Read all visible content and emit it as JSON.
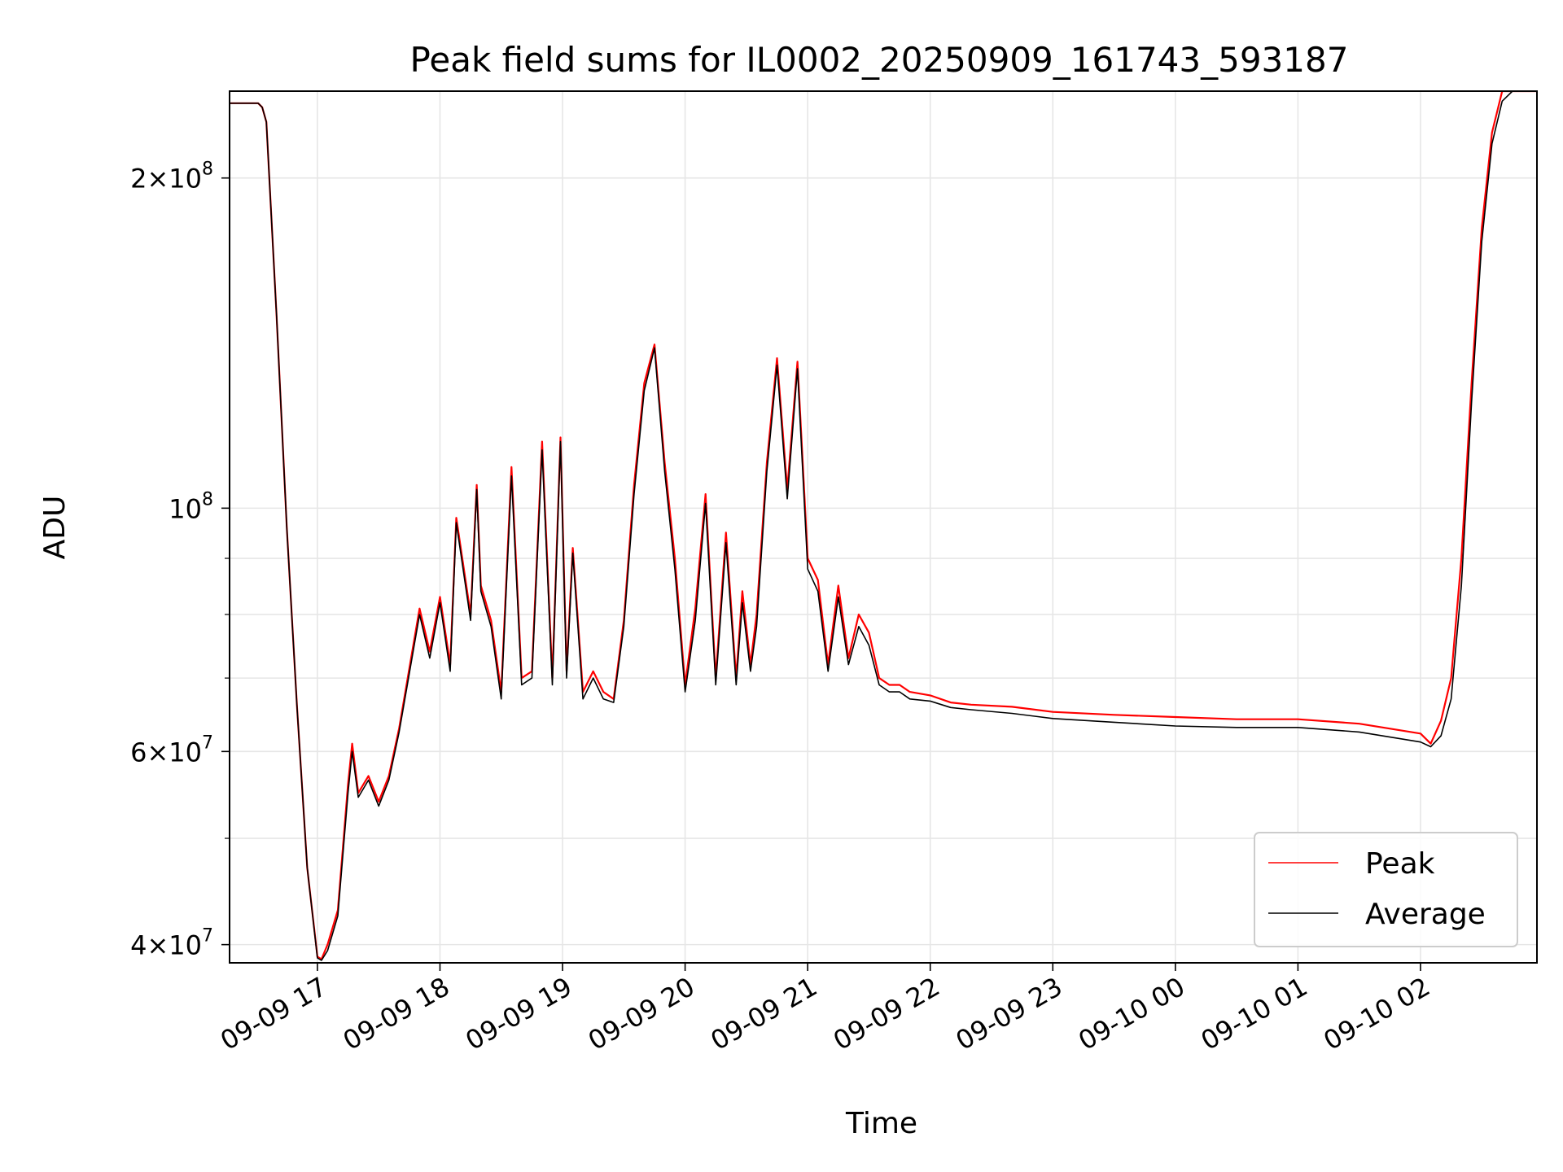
{
  "chart_data": {
    "type": "line",
    "title": "Peak field sums for IL0002_20250909_161743_593187",
    "xlabel": "Time",
    "ylabel": "ADU",
    "y_scale": "log",
    "xlim": [
      "2025-09-09 16:17",
      "2025-09-10 02:57"
    ],
    "ylim": [
      38500000,
      240000000
    ],
    "grid": true,
    "legend_position": "lower-right",
    "x_ticks": [
      {
        "value": "2025-09-09 17:00",
        "label": "09-09 17"
      },
      {
        "value": "2025-09-09 18:00",
        "label": "09-09 18"
      },
      {
        "value": "2025-09-09 19:00",
        "label": "09-09 19"
      },
      {
        "value": "2025-09-09 20:00",
        "label": "09-09 20"
      },
      {
        "value": "2025-09-09 21:00",
        "label": "09-09 21"
      },
      {
        "value": "2025-09-09 22:00",
        "label": "09-09 22"
      },
      {
        "value": "2025-09-09 23:00",
        "label": "09-09 23"
      },
      {
        "value": "2025-09-10 00:00",
        "label": "09-10 00"
      },
      {
        "value": "2025-09-10 01:00",
        "label": "09-10 01"
      },
      {
        "value": "2025-09-10 02:00",
        "label": "09-10 02"
      }
    ],
    "y_ticks": [
      {
        "value": 40000000,
        "mantissa": "4",
        "exponent": "7"
      },
      {
        "value": 60000000,
        "mantissa": "6",
        "exponent": "7"
      },
      {
        "value": 100000000,
        "mantissa": "",
        "exponent": "8"
      },
      {
        "value": 200000000,
        "mantissa": "2",
        "exponent": "8"
      }
    ],
    "y_minor_ticks": [
      50000000,
      70000000,
      80000000,
      90000000
    ],
    "series": [
      {
        "name": "Peak",
        "color": "#ff0000",
        "x": [
          "2025-09-09 16:17",
          "2025-09-09 16:31",
          "2025-09-09 16:33",
          "2025-09-09 16:35",
          "2025-09-09 16:40",
          "2025-09-09 16:45",
          "2025-09-09 16:50",
          "2025-09-09 16:55",
          "2025-09-09 17:00",
          "2025-09-09 17:02",
          "2025-09-09 17:05",
          "2025-09-09 17:10",
          "2025-09-09 17:15",
          "2025-09-09 17:17",
          "2025-09-09 17:20",
          "2025-09-09 17:25",
          "2025-09-09 17:30",
          "2025-09-09 17:35",
          "2025-09-09 17:40",
          "2025-09-09 17:50",
          "2025-09-09 17:55",
          "2025-09-09 18:00",
          "2025-09-09 18:05",
          "2025-09-09 18:08",
          "2025-09-09 18:15",
          "2025-09-09 18:18",
          "2025-09-09 18:20",
          "2025-09-09 18:25",
          "2025-09-09 18:30",
          "2025-09-09 18:35",
          "2025-09-09 18:40",
          "2025-09-09 18:45",
          "2025-09-09 18:50",
          "2025-09-09 18:55",
          "2025-09-09 18:59",
          "2025-09-09 19:02",
          "2025-09-09 19:05",
          "2025-09-09 19:10",
          "2025-09-09 19:15",
          "2025-09-09 19:20",
          "2025-09-09 19:25",
          "2025-09-09 19:30",
          "2025-09-09 19:35",
          "2025-09-09 19:40",
          "2025-09-09 19:45",
          "2025-09-09 19:50",
          "2025-09-09 19:55",
          "2025-09-09 20:00",
          "2025-09-09 20:05",
          "2025-09-09 20:10",
          "2025-09-09 20:15",
          "2025-09-09 20:20",
          "2025-09-09 20:25",
          "2025-09-09 20:28",
          "2025-09-09 20:32",
          "2025-09-09 20:35",
          "2025-09-09 20:40",
          "2025-09-09 20:45",
          "2025-09-09 20:50",
          "2025-09-09 20:55",
          "2025-09-09 21:00",
          "2025-09-09 21:05",
          "2025-09-09 21:10",
          "2025-09-09 21:15",
          "2025-09-09 21:20",
          "2025-09-09 21:25",
          "2025-09-09 21:30",
          "2025-09-09 21:35",
          "2025-09-09 21:40",
          "2025-09-09 21:45",
          "2025-09-09 21:50",
          "2025-09-09 22:00",
          "2025-09-09 22:10",
          "2025-09-09 22:20",
          "2025-09-09 22:40",
          "2025-09-09 23:00",
          "2025-09-09 23:30",
          "2025-09-10 00:00",
          "2025-09-10 00:30",
          "2025-09-10 01:00",
          "2025-09-10 01:30",
          "2025-09-10 02:00",
          "2025-09-10 02:05",
          "2025-09-10 02:10",
          "2025-09-10 02:15",
          "2025-09-10 02:20",
          "2025-09-10 02:25",
          "2025-09-10 02:30",
          "2025-09-10 02:35",
          "2025-09-10 02:40",
          "2025-09-10 02:45",
          "2025-09-10 02:50",
          "2025-09-10 02:57"
        ],
        "values": [
          234000000,
          234000000,
          232000000,
          225000000,
          150000000,
          96000000,
          66000000,
          47000000,
          39000000,
          38800000,
          40000000,
          43000000,
          56000000,
          61000000,
          55000000,
          57000000,
          54000000,
          57000000,
          63000000,
          81000000,
          74000000,
          83000000,
          72000000,
          98000000,
          80000000,
          105000000,
          85000000,
          79000000,
          68000000,
          109000000,
          70000000,
          71000000,
          115000000,
          70000000,
          116000000,
          71000000,
          92000000,
          68000000,
          71000000,
          68000000,
          67000000,
          79000000,
          105000000,
          130000000,
          141000000,
          110000000,
          90000000,
          69000000,
          81000000,
          103000000,
          70000000,
          95000000,
          70000000,
          84000000,
          72000000,
          80000000,
          110000000,
          137000000,
          104000000,
          136000000,
          90000000,
          86000000,
          72000000,
          85000000,
          73000000,
          80000000,
          77000000,
          70000000,
          69000000,
          69000000,
          68000000,
          67500000,
          66500000,
          66200000,
          65900000,
          65200000,
          64800000,
          64500000,
          64200000,
          64200000,
          63600000,
          62300000,
          61000000,
          64000000,
          70000000,
          90000000,
          130000000,
          180000000,
          220000000,
          240000000,
          240000000,
          240000000,
          240000000
        ]
      },
      {
        "name": "Average",
        "color": "#000000",
        "x": [
          "2025-09-09 16:17",
          "2025-09-09 16:31",
          "2025-09-09 16:33",
          "2025-09-09 16:35",
          "2025-09-09 16:40",
          "2025-09-09 16:45",
          "2025-09-09 16:50",
          "2025-09-09 16:55",
          "2025-09-09 17:00",
          "2025-09-09 17:02",
          "2025-09-09 17:05",
          "2025-09-09 17:10",
          "2025-09-09 17:15",
          "2025-09-09 17:17",
          "2025-09-09 17:20",
          "2025-09-09 17:25",
          "2025-09-09 17:30",
          "2025-09-09 17:35",
          "2025-09-09 17:40",
          "2025-09-09 17:50",
          "2025-09-09 17:55",
          "2025-09-09 18:00",
          "2025-09-09 18:05",
          "2025-09-09 18:08",
          "2025-09-09 18:15",
          "2025-09-09 18:18",
          "2025-09-09 18:20",
          "2025-09-09 18:25",
          "2025-09-09 18:30",
          "2025-09-09 18:35",
          "2025-09-09 18:40",
          "2025-09-09 18:45",
          "2025-09-09 18:50",
          "2025-09-09 18:55",
          "2025-09-09 18:59",
          "2025-09-09 19:02",
          "2025-09-09 19:05",
          "2025-09-09 19:10",
          "2025-09-09 19:15",
          "2025-09-09 19:20",
          "2025-09-09 19:25",
          "2025-09-09 19:30",
          "2025-09-09 19:35",
          "2025-09-09 19:40",
          "2025-09-09 19:45",
          "2025-09-09 19:50",
          "2025-09-09 19:55",
          "2025-09-09 20:00",
          "2025-09-09 20:05",
          "2025-09-09 20:10",
          "2025-09-09 20:15",
          "2025-09-09 20:20",
          "2025-09-09 20:25",
          "2025-09-09 20:28",
          "2025-09-09 20:32",
          "2025-09-09 20:35",
          "2025-09-09 20:40",
          "2025-09-09 20:45",
          "2025-09-09 20:50",
          "2025-09-09 20:55",
          "2025-09-09 21:00",
          "2025-09-09 21:05",
          "2025-09-09 21:10",
          "2025-09-09 21:15",
          "2025-09-09 21:20",
          "2025-09-09 21:25",
          "2025-09-09 21:30",
          "2025-09-09 21:35",
          "2025-09-09 21:40",
          "2025-09-09 21:45",
          "2025-09-09 21:50",
          "2025-09-09 22:00",
          "2025-09-09 22:10",
          "2025-09-09 22:20",
          "2025-09-09 22:40",
          "2025-09-09 23:00",
          "2025-09-09 23:30",
          "2025-09-10 00:00",
          "2025-09-10 00:30",
          "2025-09-10 01:00",
          "2025-09-10 01:30",
          "2025-09-10 02:00",
          "2025-09-10 02:05",
          "2025-09-10 02:10",
          "2025-09-10 02:15",
          "2025-09-10 02:20",
          "2025-09-10 02:25",
          "2025-09-10 02:30",
          "2025-09-10 02:35",
          "2025-09-10 02:40",
          "2025-09-10 02:45",
          "2025-09-10 02:50",
          "2025-09-10 02:57"
        ],
        "values": [
          234000000,
          234000000,
          232000000,
          225000000,
          150000000,
          96000000,
          66000000,
          47000000,
          38900000,
          38700000,
          39500000,
          42500000,
          55000000,
          60000000,
          54500000,
          56500000,
          53500000,
          56500000,
          62500000,
          80000000,
          73000000,
          82000000,
          71000000,
          97000000,
          79000000,
          104000000,
          84000000,
          78000000,
          67000000,
          107000000,
          69000000,
          70000000,
          113000000,
          69000000,
          115000000,
          70000000,
          91000000,
          67000000,
          70000000,
          67000000,
          66500000,
          78000000,
          103000000,
          128000000,
          140000000,
          108000000,
          88000000,
          68000000,
          79000000,
          101000000,
          69000000,
          93000000,
          69000000,
          82000000,
          71000000,
          78000000,
          108000000,
          135000000,
          102000000,
          134000000,
          88000000,
          84000000,
          71000000,
          83000000,
          72000000,
          78000000,
          75000000,
          69000000,
          68000000,
          68000000,
          67000000,
          66700000,
          65800000,
          65500000,
          65000000,
          64300000,
          63800000,
          63300000,
          63100000,
          63100000,
          62500000,
          61200000,
          60600000,
          62000000,
          67000000,
          85000000,
          125000000,
          175000000,
          215000000,
          235000000,
          240000000,
          240000000,
          240000000
        ]
      }
    ]
  }
}
